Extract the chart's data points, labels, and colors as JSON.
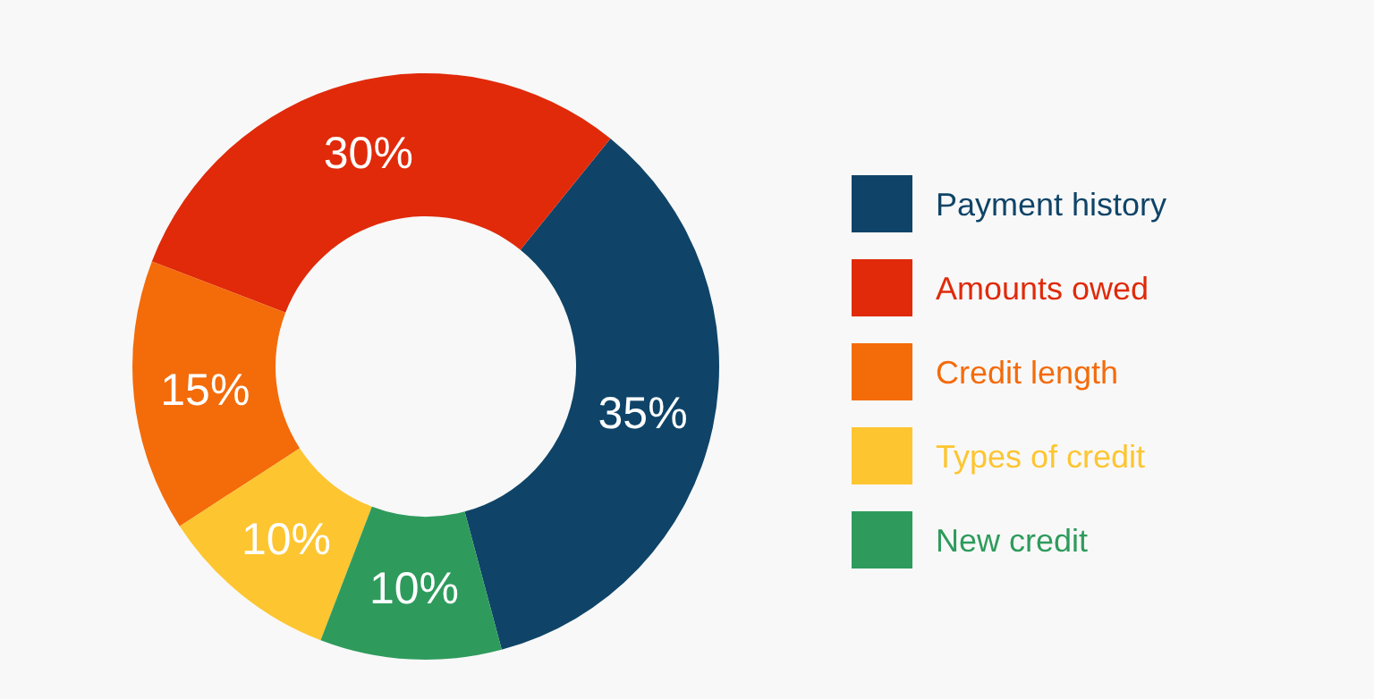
{
  "chart_data": {
    "type": "donut",
    "categories": [
      "Payment history",
      "Amounts owed",
      "Credit length",
      "Types of credit",
      "New credit"
    ],
    "values": [
      35,
      30,
      15,
      10,
      10
    ],
    "colors": [
      "#0f4468",
      "#e02a0a",
      "#f46b0a",
      "#fdc530",
      "#2e9b5c"
    ],
    "value_labels": [
      "35%",
      "30%",
      "15%",
      "10%",
      "10%"
    ],
    "legend": "right"
  }
}
